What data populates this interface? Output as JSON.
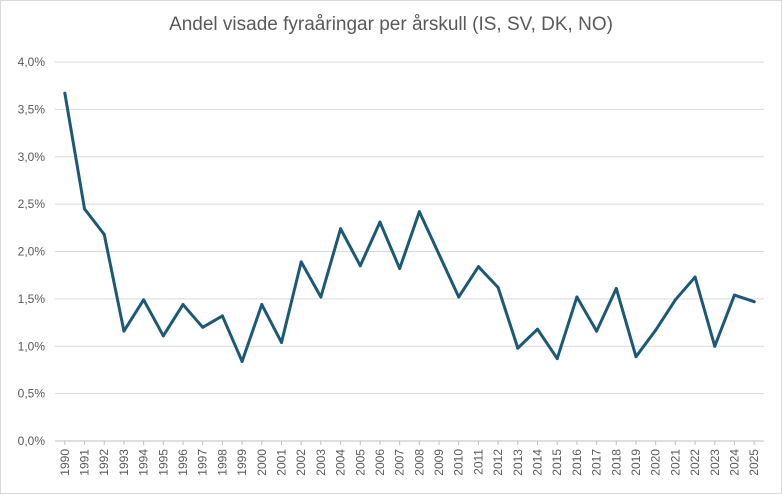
{
  "chart_data": {
    "type": "line",
    "title": "Andel visade fyraåringar per årskull (IS, SV, DK, NO)",
    "xlabel": "",
    "ylabel": "",
    "ylim": [
      0,
      4.0
    ],
    "y_ticks": [
      "0,0%",
      "0,5%",
      "1,0%",
      "1,5%",
      "2,0%",
      "2,5%",
      "3,0%",
      "3,5%",
      "4,0%"
    ],
    "grid": true,
    "legend": "none",
    "categories": [
      "1990",
      "1991",
      "1992",
      "1993",
      "1994",
      "1995",
      "1996",
      "1997",
      "1998",
      "1999",
      "2000",
      "2001",
      "2002",
      "2003",
      "2004",
      "2005",
      "2006",
      "2007",
      "2008",
      "2009",
      "2010",
      "2011",
      "2012",
      "2013",
      "2014",
      "2015",
      "2016",
      "2017",
      "2018",
      "2019",
      "2020",
      "2021",
      "2022",
      "2023",
      "2024",
      "2025"
    ],
    "values": [
      3.67,
      2.45,
      2.18,
      1.16,
      1.49,
      1.11,
      1.44,
      1.2,
      1.32,
      0.84,
      1.44,
      1.04,
      1.89,
      1.52,
      2.24,
      1.85,
      2.31,
      1.82,
      2.42,
      1.97,
      1.52,
      1.84,
      1.62,
      0.98,
      1.18,
      0.87,
      1.52,
      1.16,
      1.61,
      0.89,
      1.17,
      1.49,
      1.73,
      1.0,
      1.54,
      1.47
    ],
    "colors": {
      "line": "#1b5977",
      "grid": "#d9d9d9",
      "axis": "#bfbfbf",
      "text": "#595959"
    }
  }
}
